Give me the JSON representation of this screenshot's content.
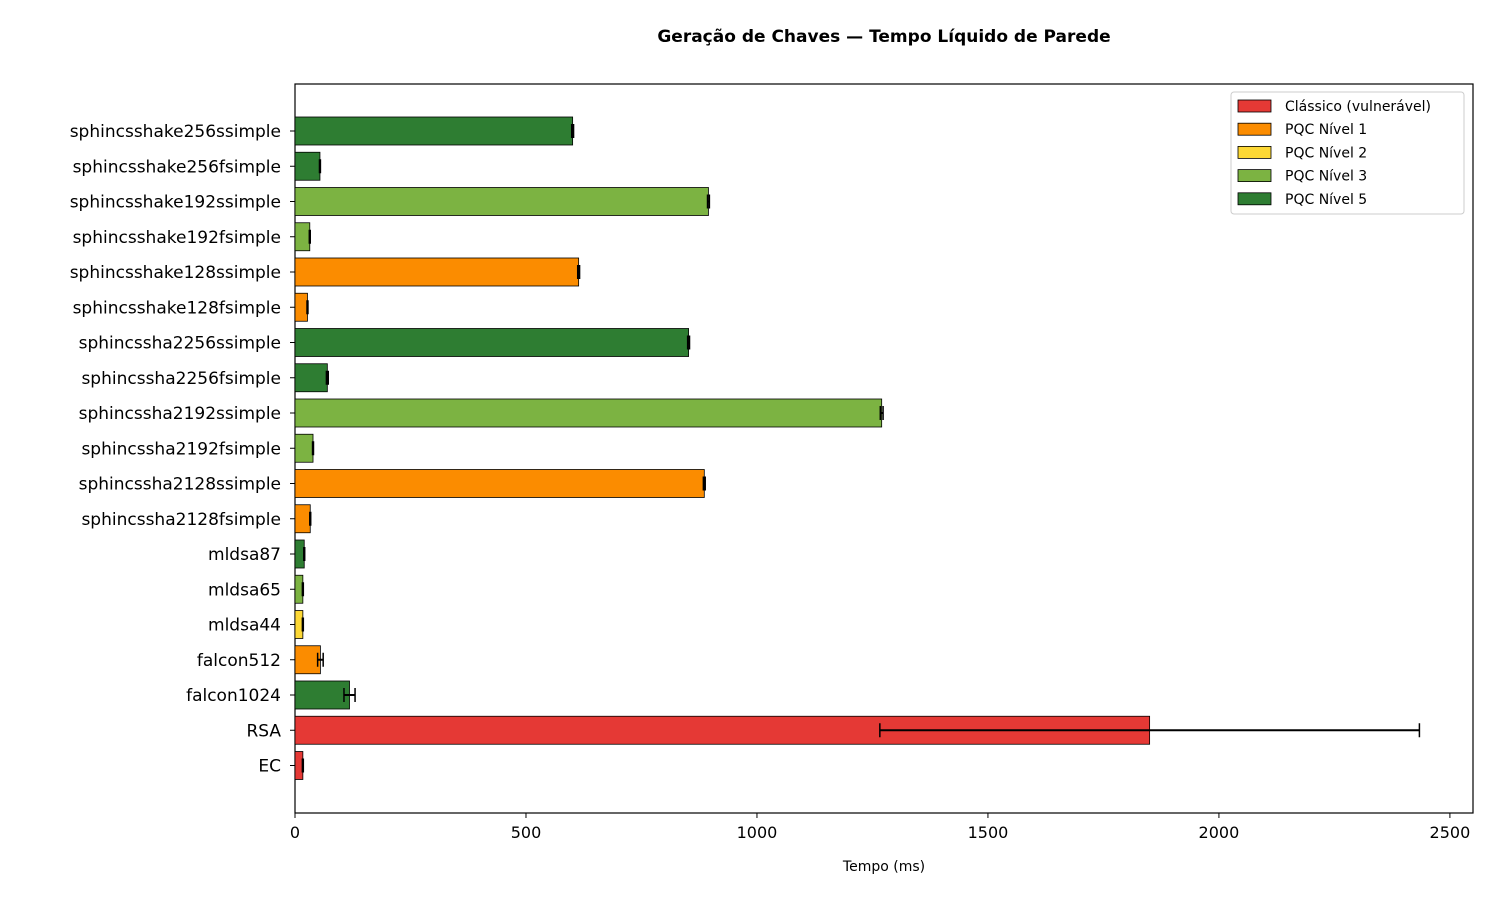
{
  "chart_data": {
    "type": "bar",
    "orientation": "horizontal",
    "title": "Geração de Chaves — Tempo Líquido de Parede",
    "xlabel": "Tempo (ms)",
    "ylabel": "",
    "xlim": [
      0,
      2550
    ],
    "xticks": [
      0,
      500,
      1000,
      1500,
      2000,
      2500
    ],
    "grid": false,
    "legend_position": "top-right",
    "categories": [
      "sphincsshake256ssimple",
      "sphincsshake256fsimple",
      "sphincsshake192ssimple",
      "sphincsshake192fsimple",
      "sphincsshake128ssimple",
      "sphincsshake128fsimple",
      "sphincssha2256ssimple",
      "sphincssha2256fsimple",
      "sphincssha2192ssimple",
      "sphincssha2192fsimple",
      "sphincssha2128ssimple",
      "sphincssha2128fsimple",
      "mldsa87",
      "mldsa65",
      "mldsa44",
      "falcon512",
      "falcon1024",
      "RSA",
      "EC"
    ],
    "values": [
      601,
      54,
      895,
      32,
      614,
      27,
      852,
      70,
      1270,
      39,
      886,
      33,
      20,
      17,
      17,
      55,
      118,
      1850,
      17
    ],
    "errors": [
      2,
      1,
      2,
      1,
      2,
      1,
      2,
      2,
      3,
      1,
      2,
      1,
      1,
      1,
      1,
      6,
      12,
      584,
      1
    ],
    "levels": [
      "PQC Nível 5",
      "PQC Nível 5",
      "PQC Nível 3",
      "PQC Nível 3",
      "PQC Nível 1",
      "PQC Nível 1",
      "PQC Nível 5",
      "PQC Nível 5",
      "PQC Nível 3",
      "PQC Nível 3",
      "PQC Nível 1",
      "PQC Nível 1",
      "PQC Nível 5",
      "PQC Nível 3",
      "PQC Nível 2",
      "PQC Nível 1",
      "PQC Nível 5",
      "Clássico (vulnerável)",
      "Clássico (vulnerável)"
    ],
    "legend": [
      {
        "name": "Clássico (vulnerável)",
        "color": "#e53935"
      },
      {
        "name": "PQC Nível 1",
        "color": "#fb8c00"
      },
      {
        "name": "PQC Nível 2",
        "color": "#fdd835"
      },
      {
        "name": "PQC Nível 3",
        "color": "#7cb342"
      },
      {
        "name": "PQC Nível 5",
        "color": "#2e7d32"
      }
    ]
  }
}
